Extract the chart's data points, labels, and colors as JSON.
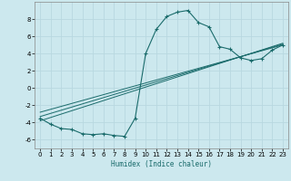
{
  "main_x": [
    0,
    1,
    2,
    3,
    4,
    5,
    6,
    7,
    8,
    9,
    10,
    11,
    12,
    13,
    14,
    15,
    16,
    17,
    18,
    19,
    20,
    21,
    22,
    23
  ],
  "main_y": [
    -3.5,
    -4.2,
    -4.7,
    -4.8,
    -5.3,
    -5.4,
    -5.3,
    -5.5,
    -5.6,
    -3.5,
    4.0,
    6.8,
    8.3,
    8.8,
    9.0,
    7.6,
    7.1,
    4.8,
    4.5,
    3.5,
    3.2,
    3.4,
    4.4,
    5.0
  ],
  "line1_x": [
    0,
    23
  ],
  "line1_y": [
    -3.8,
    5.2
  ],
  "line2_x": [
    0,
    23
  ],
  "line2_y": [
    -3.3,
    5.1
  ],
  "line3_x": [
    0,
    23
  ],
  "line3_y": [
    -2.8,
    5.0
  ],
  "bg_color": "#cce8ee",
  "line_color": "#1a6b6b",
  "grid_color": "#b8d8e0",
  "xlabel": "Humidex (Indice chaleur)",
  "xlim": [
    -0.5,
    23.5
  ],
  "ylim": [
    -7.0,
    10.0
  ],
  "yticks": [
    -6,
    -4,
    -2,
    0,
    2,
    4,
    6,
    8
  ],
  "xticks": [
    0,
    1,
    2,
    3,
    4,
    5,
    6,
    7,
    8,
    9,
    10,
    11,
    12,
    13,
    14,
    15,
    16,
    17,
    18,
    19,
    20,
    21,
    22,
    23
  ]
}
